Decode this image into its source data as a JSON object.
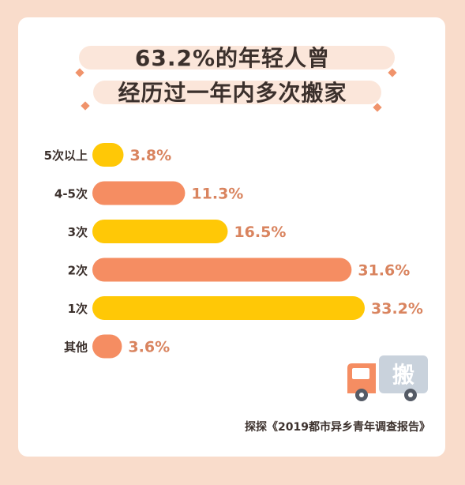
{
  "title": {
    "line1": "63.2%的年轻人曾",
    "line2": "经历过一年内多次搬家"
  },
  "chart_data": {
    "type": "bar",
    "orientation": "horizontal",
    "categories": [
      "5次以上",
      "4-5次",
      "3次",
      "2次",
      "1次",
      "其他"
    ],
    "values": [
      3.8,
      11.3,
      16.5,
      31.6,
      33.2,
      3.6
    ],
    "value_labels": [
      "3.8%",
      "11.3%",
      "16.5%",
      "31.6%",
      "33.2%",
      "3.6%"
    ],
    "unit": "%",
    "bar_colors": [
      "#ffc806",
      "#f58d62",
      "#ffc806",
      "#f58d62",
      "#ffc806",
      "#f58d62"
    ],
    "label_color": "#d9845f",
    "grid": false
  },
  "icon": {
    "name": "moving-truck-icon",
    "label": "搬"
  },
  "source": "探探《2019都市异乡青年调查报告》",
  "colors": {
    "background": "#f9dccb",
    "card": "#ffffff",
    "orange": "#f58d62",
    "yellow": "#ffc806",
    "title": "#3b302c"
  }
}
